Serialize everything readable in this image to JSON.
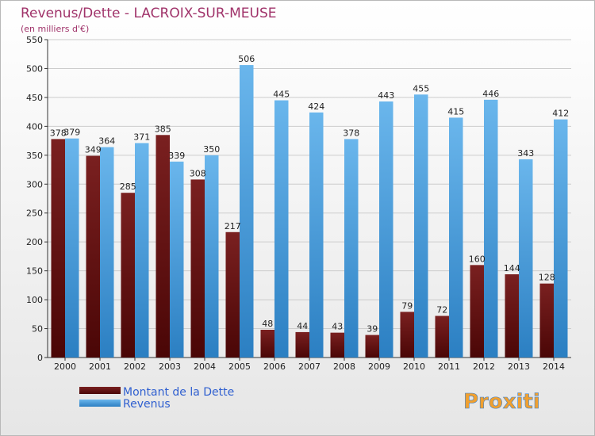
{
  "colors": {
    "debt_top": "#7a2020",
    "debt_bottom": "#4a0606",
    "rev_light": "#6ab6ec",
    "rev_dark": "#2b7fc2",
    "title": "#a0336a",
    "legend_text": "#3060d0",
    "grid": "#cccccc"
  },
  "chart_data": {
    "type": "bar",
    "title": "Revenus/Dette - LACROIX-SUR-MEUSE",
    "subtitle": "(en milliers d'€)",
    "categories": [
      "2000",
      "2001",
      "2002",
      "2003",
      "2004",
      "2005",
      "2006",
      "2007",
      "2008",
      "2009",
      "2010",
      "2011",
      "2012",
      "2013",
      "2014"
    ],
    "series": [
      {
        "name": "Montant de la Dette",
        "values": [
          378,
          349,
          285,
          385,
          308,
          217,
          48,
          44,
          43,
          39,
          79,
          72,
          160,
          144,
          128
        ]
      },
      {
        "name": "Revenus",
        "values": [
          379,
          364,
          371,
          339,
          350,
          506,
          445,
          424,
          378,
          443,
          455,
          415,
          446,
          343,
          412
        ]
      }
    ],
    "ylim": [
      0,
      550
    ],
    "yticks": [
      0,
      50,
      100,
      150,
      200,
      250,
      300,
      350,
      400,
      450,
      500,
      550
    ],
    "grid": true,
    "legend_position": "bottom-left"
  },
  "logo": {
    "text": "Proxiti"
  }
}
